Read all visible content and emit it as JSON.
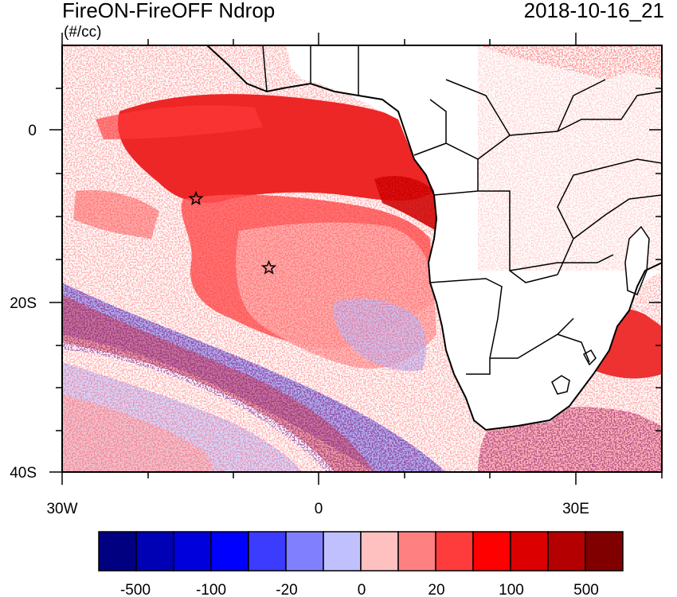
{
  "title": "FireON-FireOFF Ndrop",
  "units": "(#/cc)",
  "timestamp": "2018-10-16_21",
  "axes": {
    "lat_labels": [
      "0",
      "20S",
      "40S"
    ],
    "lon_labels": [
      "30W",
      "0",
      "30E"
    ]
  },
  "colorbar": {
    "colors": [
      "#000080",
      "#0000b4",
      "#0000dc",
      "#0000ff",
      "#3c3cff",
      "#8080ff",
      "#c0c0ff",
      "#ffc0c0",
      "#ff8080",
      "#ff3c3c",
      "#ff0000",
      "#dc0000",
      "#b40000",
      "#800000"
    ],
    "labels": [
      "-500",
      "-100",
      "-20",
      "0",
      "20",
      "100",
      "500"
    ]
  },
  "markers": [
    {
      "name": "star-marker-west",
      "lon": -14.3,
      "lat": -8
    },
    {
      "name": "star-marker-east",
      "lon": -5.8,
      "lat": -16
    }
  ],
  "colors": {
    "positive_strong": "#e60000",
    "positive_mid": "#ff6464",
    "positive_weak": "#ffb4b4",
    "negative_weak": "#b4b4ff",
    "negative_strong": "#1e1edc",
    "coastline": "#000000"
  }
}
